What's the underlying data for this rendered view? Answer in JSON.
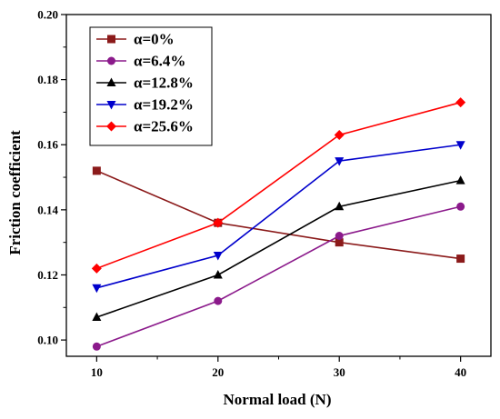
{
  "chart_data": {
    "type": "line",
    "xlabel": "Normal load (N)",
    "ylabel": "Friction coefficient",
    "x": [
      10,
      20,
      30,
      40
    ],
    "x_ticks": [
      "10",
      "20",
      "30",
      "40"
    ],
    "xlim": [
      7.5,
      42.5
    ],
    "ylim": [
      0.095,
      0.2
    ],
    "y_ticks": [
      "0.10",
      "0.12",
      "0.14",
      "0.16",
      "0.18",
      "0.20"
    ],
    "legend_position": "top-left",
    "grid": false,
    "series": [
      {
        "name": "α=0%",
        "color": "#8b1a1a",
        "marker": "square",
        "values": [
          0.152,
          0.136,
          0.13,
          0.125
        ]
      },
      {
        "name": "α=6.4%",
        "color": "#8b1a8b",
        "marker": "circle",
        "values": [
          0.098,
          0.112,
          0.132,
          0.141
        ]
      },
      {
        "name": "α=12.8%",
        "color": "#000000",
        "marker": "triangle-up",
        "values": [
          0.107,
          0.12,
          0.141,
          0.149
        ]
      },
      {
        "name": "α=19.2%",
        "color": "#0000cc",
        "marker": "triangle-down",
        "values": [
          0.116,
          0.126,
          0.155,
          0.16
        ]
      },
      {
        "name": "α=25.6%",
        "color": "#ff0000",
        "marker": "diamond",
        "values": [
          0.122,
          0.136,
          0.163,
          0.173
        ]
      }
    ]
  }
}
